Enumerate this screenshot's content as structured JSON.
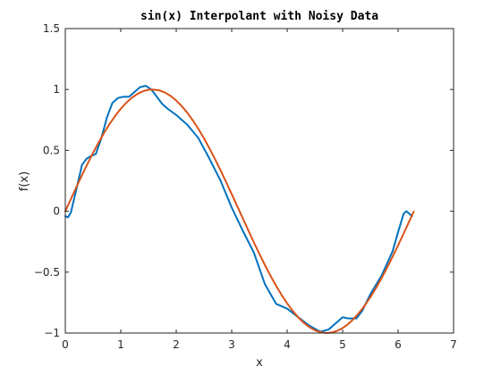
{
  "chart_data": {
    "type": "line",
    "title": "sin(x) Interpolant with Noisy Data",
    "xlabel": "x",
    "ylabel": "f(x)",
    "xlim": [
      0,
      7
    ],
    "ylim": [
      -1,
      1.5
    ],
    "xticks": [
      0,
      1,
      2,
      3,
      4,
      5,
      6,
      7
    ],
    "xtick_labels": [
      "0",
      "1",
      "2",
      "3",
      "4",
      "5",
      "6",
      "7"
    ],
    "yticks": [
      -1,
      -0.5,
      0,
      0.5,
      1,
      1.5
    ],
    "ytick_labels": [
      "−1",
      "−0.5",
      "0",
      "0.5",
      "1",
      "1.5"
    ],
    "grid": false,
    "box": true,
    "series": [
      {
        "color": "#0072BD",
        "x": [
          0,
          0.05,
          0.1,
          0.2,
          0.3,
          0.38,
          0.45,
          0.55,
          0.65,
          0.75,
          0.85,
          0.95,
          1.05,
          1.15,
          1.25,
          1.35,
          1.45,
          1.55,
          1.65,
          1.75,
          1.85,
          2.0,
          2.2,
          2.4,
          2.6,
          2.8,
          3.0,
          3.2,
          3.4,
          3.6,
          3.8,
          4.0,
          4.2,
          4.4,
          4.6,
          4.75,
          4.9,
          5.0,
          5.1,
          5.25,
          5.35,
          5.5,
          5.7,
          5.9,
          6.0,
          6.1,
          6.15,
          6.2,
          6.25
        ],
        "y": [
          -0.04,
          -0.05,
          -0.01,
          0.18,
          0.38,
          0.43,
          0.45,
          0.47,
          0.6,
          0.77,
          0.89,
          0.93,
          0.94,
          0.94,
          0.98,
          1.02,
          1.03,
          1.0,
          0.94,
          0.88,
          0.84,
          0.79,
          0.71,
          0.6,
          0.43,
          0.25,
          0.03,
          -0.16,
          -0.34,
          -0.6,
          -0.76,
          -0.8,
          -0.87,
          -0.94,
          -0.99,
          -0.97,
          -0.91,
          -0.87,
          -0.88,
          -0.88,
          -0.82,
          -0.68,
          -0.53,
          -0.33,
          -0.17,
          -0.02,
          0.0,
          -0.02,
          -0.04
        ]
      },
      {
        "color": "#D95319",
        "x": [
          0,
          0.1,
          0.2,
          0.3,
          0.4,
          0.5,
          0.6,
          0.7,
          0.8,
          0.9,
          1.0,
          1.1,
          1.2,
          1.3,
          1.4,
          1.5,
          1.57,
          1.7,
          1.8,
          1.9,
          2.0,
          2.1,
          2.2,
          2.3,
          2.4,
          2.5,
          2.6,
          2.7,
          2.8,
          2.9,
          3.0,
          3.1,
          3.2,
          3.3,
          3.4,
          3.5,
          3.6,
          3.7,
          3.8,
          3.9,
          4.0,
          4.1,
          4.2,
          4.3,
          4.4,
          4.5,
          4.6,
          4.71,
          4.8,
          4.9,
          5.0,
          5.1,
          5.2,
          5.3,
          5.4,
          5.5,
          5.6,
          5.7,
          5.8,
          5.9,
          6.0,
          6.1,
          6.2,
          6.28
        ],
        "y": [
          0.0,
          0.0998,
          0.1987,
          0.2955,
          0.3894,
          0.4794,
          0.5646,
          0.6442,
          0.7174,
          0.7833,
          0.8415,
          0.8912,
          0.932,
          0.9636,
          0.9854,
          0.9975,
          1.0,
          0.9917,
          0.9738,
          0.9463,
          0.9093,
          0.8632,
          0.8085,
          0.7457,
          0.6755,
          0.5985,
          0.5155,
          0.4274,
          0.335,
          0.2392,
          0.1411,
          0.0416,
          -0.0584,
          -0.1577,
          -0.2555,
          -0.3508,
          -0.4425,
          -0.5298,
          -0.6119,
          -0.6878,
          -0.7568,
          -0.8183,
          -0.8716,
          -0.9162,
          -0.9516,
          -0.9775,
          -0.9937,
          -1.0,
          -0.9962,
          -0.9825,
          -0.9589,
          -0.9258,
          -0.8835,
          -0.8323,
          -0.7728,
          -0.7055,
          -0.6313,
          -0.5507,
          -0.4646,
          -0.3739,
          -0.2794,
          -0.1822,
          -0.0831,
          -0.0032
        ]
      }
    ]
  }
}
